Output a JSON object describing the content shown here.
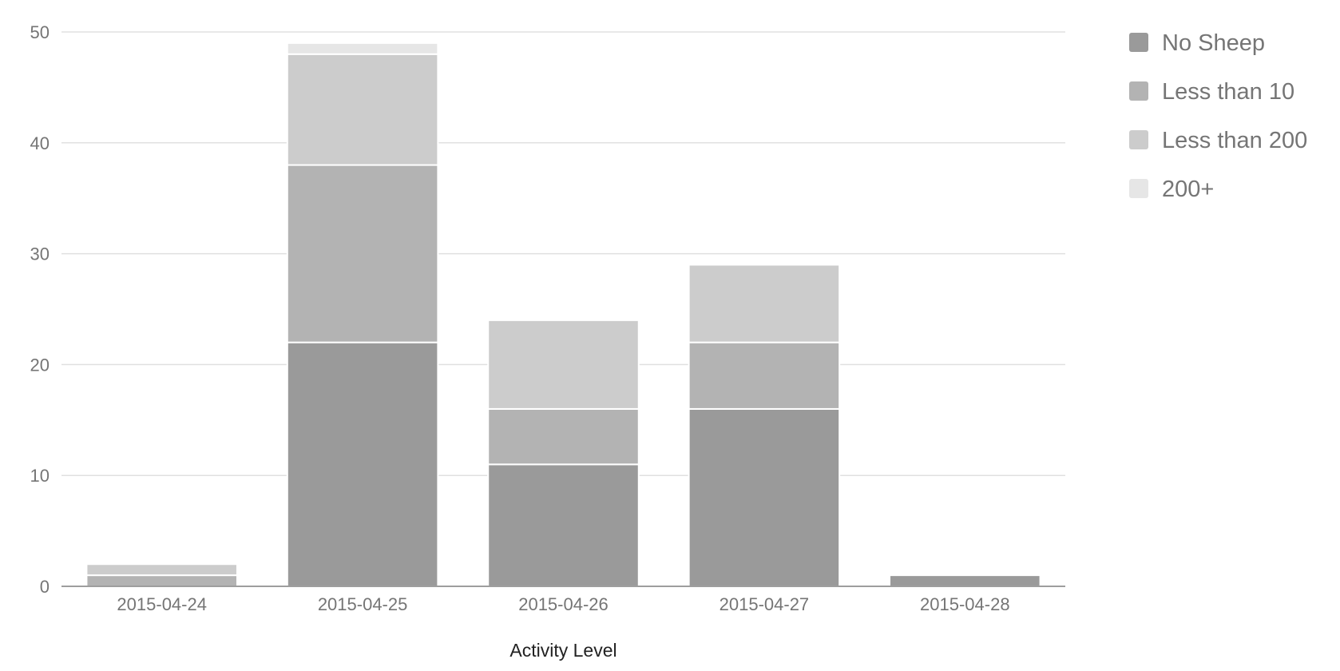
{
  "chart_data": {
    "type": "bar",
    "stacked": true,
    "title": "",
    "xlabel": "Activity Level",
    "ylabel": "",
    "ylim": [
      0,
      50
    ],
    "yticks": [
      0,
      10,
      20,
      30,
      40,
      50
    ],
    "grid": true,
    "legend": "right",
    "categories": [
      "2015-04-24",
      "2015-04-25",
      "2015-04-26",
      "2015-04-27",
      "2015-04-28"
    ],
    "series": [
      {
        "name": "No Sheep",
        "color": "#9a9a9a",
        "values": [
          0,
          22,
          11,
          16,
          1
        ]
      },
      {
        "name": "Less than 10",
        "color": "#b3b3b3",
        "values": [
          1,
          16,
          5,
          6,
          0
        ]
      },
      {
        "name": "Less than 200",
        "color": "#cccccc",
        "values": [
          1,
          10,
          8,
          7,
          0
        ]
      },
      {
        "name": "200+",
        "color": "#e6e6e6",
        "values": [
          0,
          1,
          0,
          0,
          0
        ]
      }
    ]
  }
}
